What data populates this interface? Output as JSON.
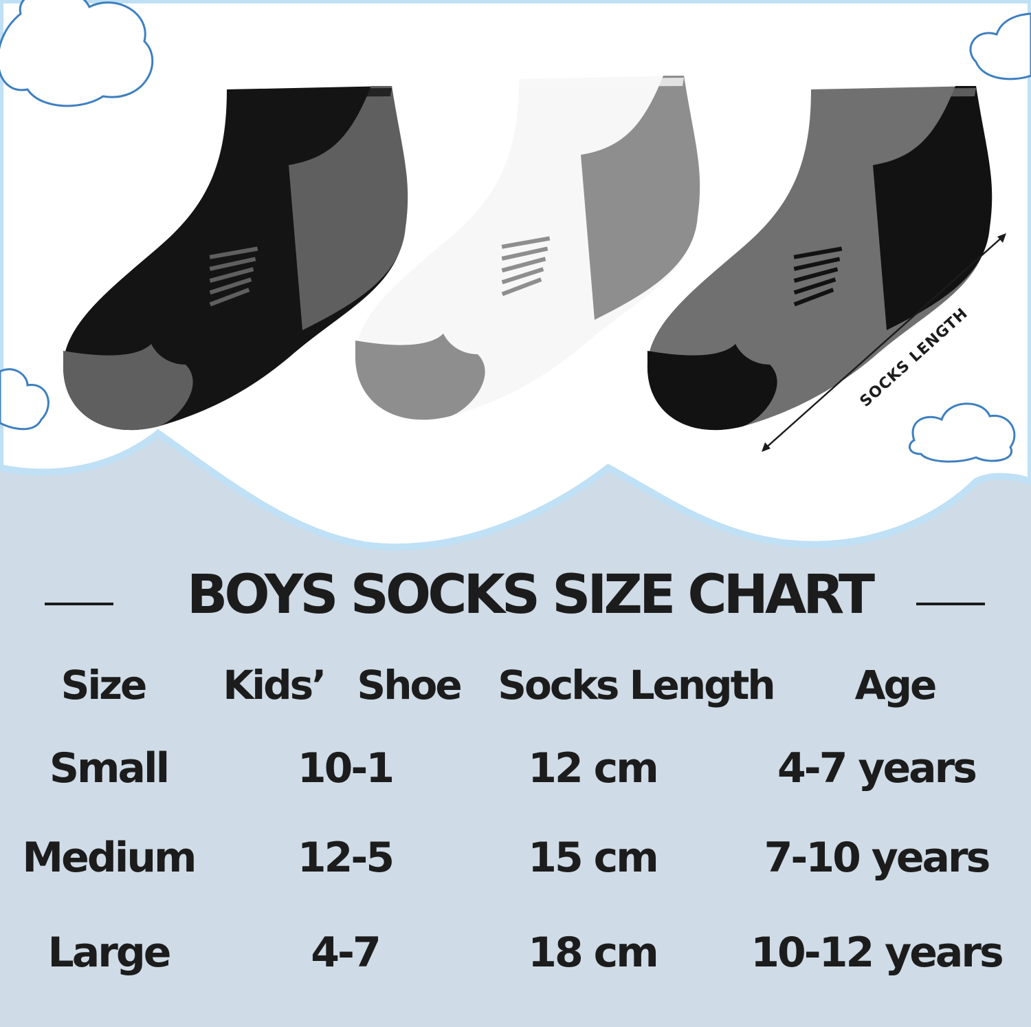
{
  "title": "BOYS SOCKS SIZE CHART",
  "annotation": "SOCKS LENGTH",
  "colors": {
    "background": "#cfdbe6",
    "wave_outline": "#bfe0f5",
    "text": "#1c1c1c"
  },
  "headers": [
    "Size",
    "Kids’ Shoe",
    "Socks Length",
    "Age"
  ],
  "rows": [
    [
      "Small",
      "10-1",
      "12 cm",
      "4-7 years"
    ],
    [
      "Medium",
      "12-5",
      "15 cm",
      "7-10 years"
    ],
    [
      "Large",
      "4-7",
      "18 cm",
      "10-12 years"
    ]
  ],
  "socks": [
    {
      "body": "#141414",
      "accent": "#5f5f5f"
    },
    {
      "body": "#f7f7f7",
      "accent": "#8e8e8e"
    },
    {
      "body": "#707070",
      "accent": "#121212"
    }
  ]
}
